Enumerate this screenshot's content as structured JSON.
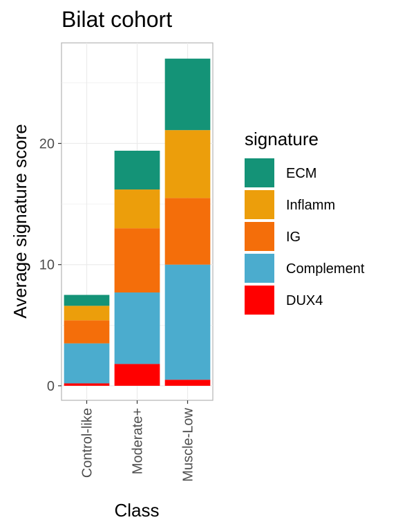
{
  "chart_data": {
    "type": "bar",
    "stacked": true,
    "title": "Bilat cohort",
    "xlabel": "Class",
    "ylabel": "Average signature score",
    "categories": [
      "Control-like",
      "Moderate+",
      "Muscle-Low"
    ],
    "yticks": [
      0,
      10,
      20
    ],
    "ylim": [
      -1.2,
      28.3
    ],
    "grid": true,
    "legend": {
      "title": "signature",
      "position": "right"
    },
    "series": [
      {
        "name": "DUX4",
        "color": "#FF0000",
        "values": [
          0.2,
          1.8,
          0.5
        ]
      },
      {
        "name": "Complement",
        "color": "#4BACCE",
        "values": [
          3.3,
          5.9,
          9.5
        ]
      },
      {
        "name": "IG",
        "color": "#F46E0A",
        "values": [
          1.9,
          5.3,
          5.5
        ]
      },
      {
        "name": "Inflamm",
        "color": "#EC9E0B",
        "values": [
          1.2,
          3.2,
          5.6
        ]
      },
      {
        "name": "ECM",
        "color": "#149377",
        "values": [
          0.9,
          3.2,
          5.9
        ]
      }
    ],
    "legend_order": [
      "ECM",
      "Inflamm",
      "IG",
      "Complement",
      "DUX4"
    ]
  }
}
